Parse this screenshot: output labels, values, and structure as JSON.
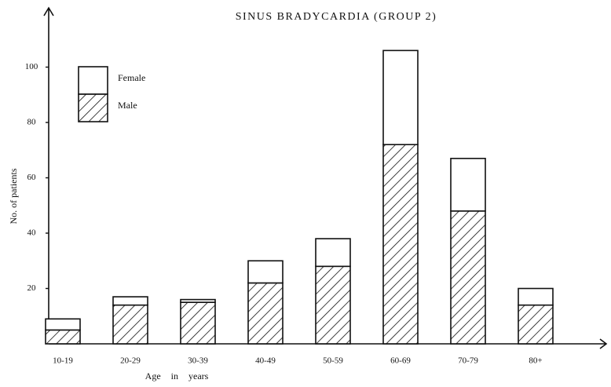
{
  "chart_data": {
    "type": "stacked_bar",
    "title": "SINUS BRADYCARDIA (GROUP 2)",
    "x_label": "Age in years",
    "y_label": "No. of patients",
    "categories": [
      "10-19",
      "20-29",
      "30-39",
      "40-49",
      "50-59",
      "60-69",
      "70-79",
      "80+"
    ],
    "series": [
      {
        "name": "Male",
        "color": "#ffffff",
        "hatch": true,
        "values": [
          5,
          14,
          15,
          22,
          28,
          72,
          48,
          14
        ]
      },
      {
        "name": "Female",
        "color": "#ffffff",
        "hatch": false,
        "values": [
          4,
          3,
          1,
          8,
          10,
          34,
          19,
          6
        ]
      }
    ],
    "ylim": [
      0,
      120
    ],
    "yticks": [
      20,
      40,
      60,
      80,
      100
    ],
    "grid": false,
    "legend": "upper left"
  }
}
